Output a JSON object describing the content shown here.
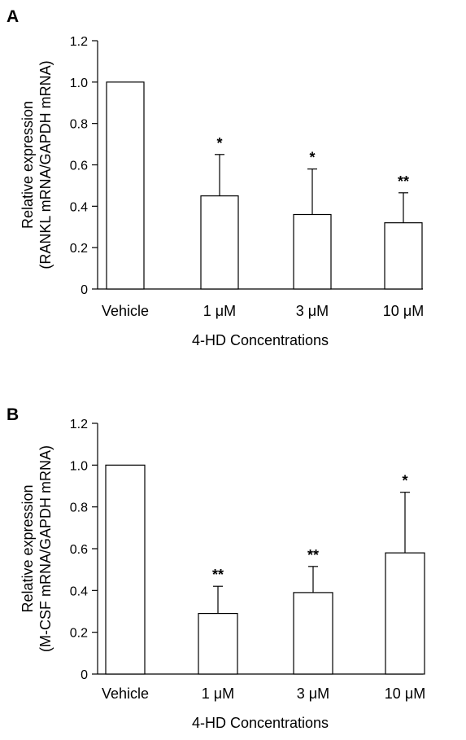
{
  "chart_data": [
    {
      "panel_label": "A",
      "type": "bar",
      "categories": [
        "Vehicle",
        "1 μM",
        "3 μM",
        "10 μM"
      ],
      "values": [
        1.0,
        0.45,
        0.36,
        0.32
      ],
      "error_bars": [
        0.0,
        0.2,
        0.22,
        0.145
      ],
      "significance": [
        "",
        "*",
        "*",
        "**"
      ],
      "xlabel": "4-HD Concentrations",
      "ylabel": [
        "Relative expression",
        "(RANKL mRNA/GAPDH mRNA)"
      ],
      "ylim": [
        0,
        1.2
      ],
      "yticks": [
        "0",
        "0.2",
        "0.4",
        "0.6",
        "0.8",
        "1.0",
        "1.2"
      ],
      "grid": false,
      "bar_color": "#ffffff"
    },
    {
      "panel_label": "B",
      "type": "bar",
      "categories": [
        "Vehicle",
        "1 μM",
        "3 μM",
        "10 μM"
      ],
      "values": [
        1.0,
        0.29,
        0.39,
        0.58
      ],
      "error_bars": [
        0.0,
        0.13,
        0.125,
        0.29
      ],
      "significance": [
        "",
        "**",
        "**",
        "*"
      ],
      "xlabel": "4-HD Concentrations",
      "ylabel": [
        "Relative expression",
        "(M-CSF mRNA/GAPDH mRNA)"
      ],
      "ylim": [
        0,
        1.2
      ],
      "yticks": [
        "0",
        "0.2",
        "0.4",
        "0.6",
        "0.8",
        "1.0",
        "1.2"
      ],
      "grid": false,
      "bar_color": "#ffffff"
    }
  ]
}
